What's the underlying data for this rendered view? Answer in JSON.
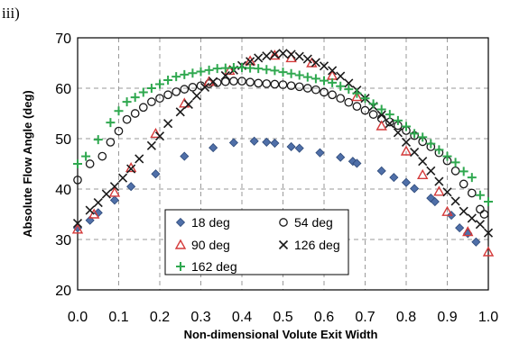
{
  "panel_label": "iii)",
  "chart_data": {
    "type": "scatter",
    "title": "",
    "xlabel": "Non-dimensional Volute Exit Width",
    "ylabel": "Absolute Flow  Angle (deg)",
    "xlim": [
      0.0,
      1.0
    ],
    "ylim": [
      20,
      70
    ],
    "x_ticks": [
      "0.0",
      "0.1",
      "0.2",
      "0.3",
      "0.4",
      "0.5",
      "0.6",
      "0.7",
      "0.8",
      "0.9",
      "1.0"
    ],
    "y_ticks": [
      "20",
      "30",
      "40",
      "50",
      "60",
      "70"
    ],
    "grid": true,
    "legend_placement": "lower-center",
    "series": [
      {
        "name": "18 deg",
        "marker": "diamond",
        "color": "#4f6fa8",
        "x": [
          0.0,
          0.03,
          0.05,
          0.09,
          0.13,
          0.19,
          0.26,
          0.33,
          0.38,
          0.43,
          0.46,
          0.48,
          0.52,
          0.54,
          0.59,
          0.64,
          0.67,
          0.68,
          0.74,
          0.77,
          0.8,
          0.82,
          0.86,
          0.87,
          0.91,
          0.93,
          0.95,
          0.97
        ],
        "y": [
          32.3,
          33.8,
          35.3,
          37.8,
          40.5,
          43.0,
          46.5,
          48.2,
          49.2,
          49.5,
          49.3,
          49.1,
          48.4,
          48.1,
          47.2,
          46.3,
          45.5,
          45.1,
          43.6,
          42.3,
          41.3,
          40.1,
          38.2,
          37.5,
          34.8,
          32.3,
          31.2,
          29.5
        ]
      },
      {
        "name": "54 deg",
        "marker": "circle",
        "color": "#1a1a1a",
        "x": [
          0.0,
          0.03,
          0.06,
          0.08,
          0.1,
          0.12,
          0.14,
          0.16,
          0.18,
          0.2,
          0.22,
          0.24,
          0.26,
          0.28,
          0.3,
          0.32,
          0.34,
          0.36,
          0.38,
          0.4,
          0.42,
          0.44,
          0.46,
          0.48,
          0.5,
          0.52,
          0.54,
          0.56,
          0.58,
          0.6,
          0.62,
          0.64,
          0.66,
          0.68,
          0.7,
          0.72,
          0.74,
          0.76,
          0.78,
          0.8,
          0.82,
          0.84,
          0.86,
          0.88,
          0.9,
          0.92,
          0.94,
          0.96,
          0.98,
          0.99
        ],
        "y": [
          41.8,
          45.0,
          46.5,
          49.3,
          51.5,
          53.8,
          55.0,
          56.2,
          57.3,
          58.0,
          58.7,
          59.3,
          59.8,
          60.2,
          60.5,
          60.9,
          61.1,
          61.3,
          61.4,
          61.4,
          61.2,
          61.0,
          60.9,
          60.8,
          60.7,
          60.5,
          60.3,
          60.0,
          59.7,
          59.2,
          58.7,
          58.0,
          57.2,
          56.4,
          55.6,
          54.8,
          54.0,
          53.3,
          52.6,
          51.6,
          50.6,
          49.4,
          48.4,
          47.2,
          45.6,
          43.6,
          41.0,
          39.2,
          36.0,
          35.0
        ]
      },
      {
        "name": "90 deg",
        "marker": "triangle",
        "color": "#d43a3a",
        "x": [
          0.0,
          0.04,
          0.09,
          0.13,
          0.19,
          0.26,
          0.32,
          0.37,
          0.42,
          0.48,
          0.52,
          0.57,
          0.62,
          0.68,
          0.74,
          0.8,
          0.84,
          0.88,
          0.9,
          0.95,
          1.0
        ],
        "y": [
          32.0,
          35.0,
          39.3,
          44.2,
          51.0,
          57.0,
          61.3,
          63.5,
          65.4,
          66.5,
          66.0,
          65.0,
          62.5,
          58.3,
          52.5,
          47.5,
          42.8,
          39.5,
          35.5,
          31.5,
          27.5
        ]
      },
      {
        "name": "126 deg",
        "marker": "x",
        "color": "#1a1a1a",
        "x": [
          0.0,
          0.03,
          0.05,
          0.07,
          0.09,
          0.11,
          0.13,
          0.15,
          0.18,
          0.2,
          0.22,
          0.25,
          0.27,
          0.29,
          0.31,
          0.33,
          0.36,
          0.38,
          0.4,
          0.42,
          0.44,
          0.46,
          0.48,
          0.5,
          0.52,
          0.54,
          0.56,
          0.58,
          0.6,
          0.62,
          0.64,
          0.66,
          0.68,
          0.7,
          0.72,
          0.74,
          0.76,
          0.78,
          0.8,
          0.82,
          0.84,
          0.86,
          0.88,
          0.9,
          0.92,
          0.94,
          0.96,
          0.98,
          1.0
        ],
        "y": [
          33.2,
          35.8,
          37.3,
          39.0,
          40.5,
          42.2,
          44.0,
          46.0,
          48.6,
          50.5,
          53.0,
          55.3,
          56.8,
          58.5,
          60.2,
          61.3,
          62.5,
          63.6,
          64.5,
          65.3,
          66.0,
          66.4,
          66.7,
          66.9,
          66.7,
          66.3,
          65.8,
          65.1,
          64.4,
          63.5,
          62.4,
          61.0,
          59.6,
          58.0,
          56.4,
          54.7,
          53.0,
          51.2,
          49.3,
          47.3,
          45.5,
          43.6,
          41.5,
          39.4,
          37.6,
          35.6,
          34.2,
          33.0,
          31.3
        ]
      },
      {
        "name": "162 deg",
        "marker": "plus",
        "color": "#2fa84f",
        "x": [
          0.0,
          0.02,
          0.05,
          0.08,
          0.1,
          0.12,
          0.14,
          0.16,
          0.18,
          0.2,
          0.22,
          0.24,
          0.26,
          0.28,
          0.3,
          0.32,
          0.34,
          0.36,
          0.38,
          0.4,
          0.42,
          0.44,
          0.46,
          0.48,
          0.5,
          0.52,
          0.54,
          0.56,
          0.58,
          0.6,
          0.62,
          0.64,
          0.66,
          0.68,
          0.7,
          0.72,
          0.74,
          0.76,
          0.78,
          0.8,
          0.82,
          0.84,
          0.86,
          0.88,
          0.9,
          0.92,
          0.94,
          0.96,
          0.98,
          1.0
        ],
        "y": [
          45.0,
          46.5,
          49.8,
          53.2,
          55.5,
          57.3,
          58.2,
          59.2,
          60.0,
          60.8,
          61.6,
          62.3,
          62.7,
          63.0,
          63.3,
          63.6,
          63.9,
          64.0,
          64.1,
          64.1,
          64.0,
          63.9,
          63.7,
          63.5,
          63.2,
          62.9,
          62.6,
          62.2,
          61.9,
          61.5,
          61.1,
          60.4,
          59.8,
          59.0,
          58.0,
          56.9,
          55.8,
          54.8,
          53.6,
          52.4,
          51.0,
          50.3,
          49.0,
          47.8,
          46.5,
          45.3,
          43.5,
          42.3,
          38.8,
          37.5
        ]
      }
    ]
  }
}
